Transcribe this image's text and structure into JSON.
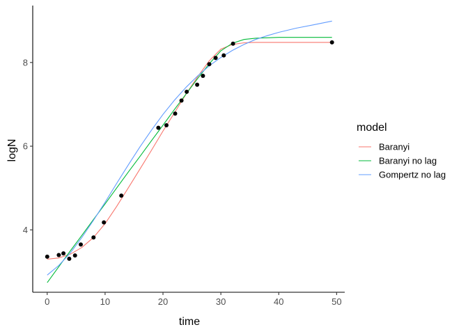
{
  "chart_data": {
    "type": "line",
    "xlabel": "time",
    "ylabel": "logN",
    "xlim": [
      -2.5,
      51.4
    ],
    "ylim": [
      2.51,
      9.36
    ],
    "xticks": [
      0,
      10,
      20,
      30,
      40,
      50
    ],
    "yticks": [
      4,
      6,
      8
    ],
    "grid": false,
    "legend": {
      "title": "model",
      "placement": "right",
      "entries": [
        "Baranyi",
        "Baranyi no lag",
        "Gompertz no lag"
      ]
    },
    "points": {
      "x": [
        0,
        2.0,
        2.8,
        3.8,
        4.8,
        5.8,
        8.0,
        9.8,
        12.8,
        19.2,
        20.6,
        22.1,
        23.2,
        24.1,
        25.9,
        26.9,
        28.0,
        29.1,
        30.5,
        32.1,
        49.2
      ],
      "y": [
        3.36,
        3.4,
        3.44,
        3.31,
        3.39,
        3.65,
        3.82,
        4.18,
        4.82,
        6.44,
        6.5,
        6.78,
        7.09,
        7.3,
        7.47,
        7.68,
        7.96,
        8.11,
        8.17,
        8.45,
        8.48
      ]
    },
    "series": [
      {
        "name": "Baranyi",
        "color": "#F8766D",
        "x": [
          0,
          2,
          4,
          6,
          8,
          10,
          12,
          14,
          16,
          18,
          20,
          22,
          24,
          26,
          28,
          30,
          32,
          34,
          36,
          40,
          45,
          49.2
        ],
        "y": [
          3.3,
          3.33,
          3.42,
          3.58,
          3.82,
          4.15,
          4.56,
          5.0,
          5.45,
          5.9,
          6.36,
          6.8,
          7.25,
          7.66,
          8.04,
          8.32,
          8.43,
          8.47,
          8.48,
          8.48,
          8.48,
          8.48
        ]
      },
      {
        "name": "Baranyi no lag",
        "color": "#00BA38",
        "x": [
          0,
          2,
          4,
          6,
          8,
          10,
          12,
          14,
          16,
          18,
          20,
          22,
          24,
          26,
          28,
          30,
          32,
          34,
          36,
          40,
          45,
          49.2
        ],
        "y": [
          2.74,
          3.12,
          3.5,
          3.87,
          4.25,
          4.62,
          5.0,
          5.38,
          5.75,
          6.13,
          6.5,
          6.88,
          7.25,
          7.62,
          7.97,
          8.28,
          8.46,
          8.55,
          8.58,
          8.6,
          8.6,
          8.6
        ]
      },
      {
        "name": "Gompertz no lag",
        "color": "#619CFF",
        "x": [
          0,
          2,
          4,
          6,
          8,
          10,
          12,
          14,
          16,
          18,
          20,
          22,
          24,
          26,
          28,
          30,
          32,
          34,
          36,
          38,
          40,
          43,
          46,
          49.2
        ],
        "y": [
          2.92,
          3.15,
          3.45,
          3.82,
          4.23,
          4.66,
          5.11,
          5.55,
          5.98,
          6.38,
          6.76,
          7.1,
          7.41,
          7.68,
          7.92,
          8.12,
          8.29,
          8.43,
          8.55,
          8.64,
          8.72,
          8.82,
          8.9,
          8.99
        ]
      }
    ]
  }
}
